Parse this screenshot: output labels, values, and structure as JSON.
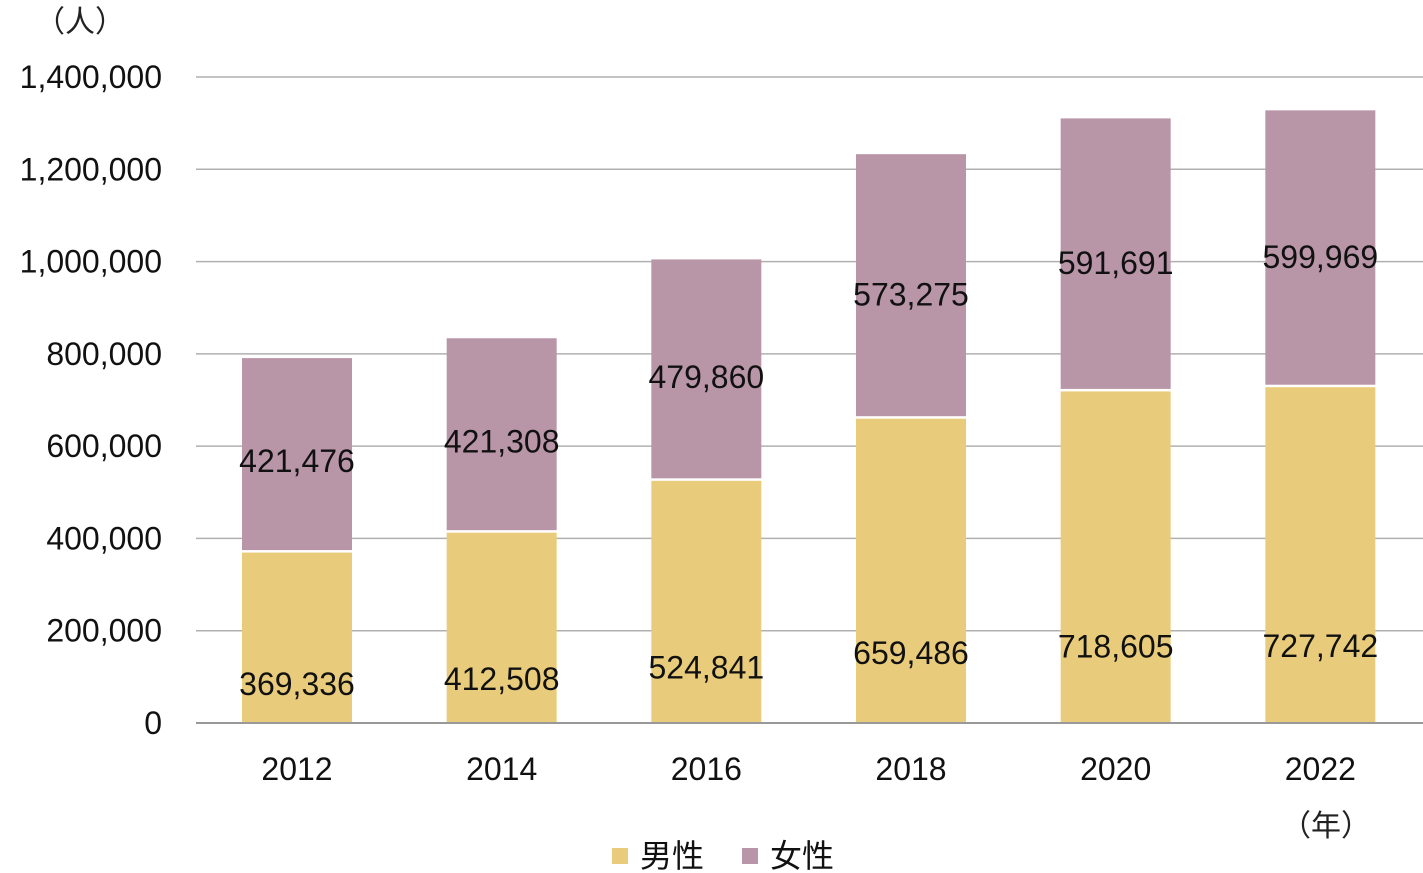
{
  "chart_data": {
    "type": "bar",
    "stacked": true,
    "ylabel": "（人）",
    "xlabel": "（年）",
    "categories": [
      "2012",
      "2014",
      "2016",
      "2018",
      "2020",
      "2022"
    ],
    "series": [
      {
        "name": "男性",
        "color": "#e8cc7c",
        "values": [
          369336,
          412508,
          524841,
          659486,
          718605,
          727742
        ]
      },
      {
        "name": "女性",
        "color": "#b995a8",
        "values": [
          421476,
          421308,
          479860,
          573275,
          591691,
          599969
        ]
      }
    ],
    "ylim": [
      0,
      1400000
    ],
    "yticks": [
      0,
      200000,
      400000,
      600000,
      800000,
      1000000,
      1200000,
      1400000
    ],
    "ytick_labels": [
      "0",
      "200,000",
      "400,000",
      "600,000",
      "800,000",
      "1,000,000",
      "1,200,000",
      "1,400,000"
    ],
    "data_labels": [
      [
        "369,336",
        "412,508",
        "524,841",
        "659,486",
        "718,605",
        "727,742"
      ],
      [
        "421,476",
        "421,308",
        "479,860",
        "573,275",
        "591,691",
        "599,969"
      ]
    ],
    "grid": true,
    "legend": "bottom-center"
  }
}
